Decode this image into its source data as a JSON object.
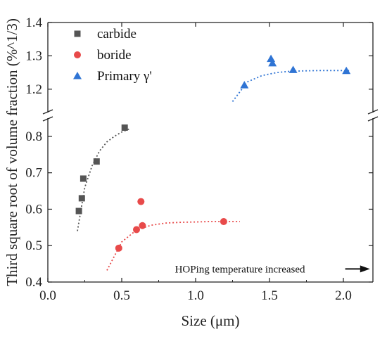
{
  "chart_data": {
    "type": "scatter",
    "xlabel": "Size (μm)",
    "ylabel": "Third square root of volume fraction (%^1/3)",
    "xlim": [
      0.0,
      2.2
    ],
    "x_ticks": [
      "0.0",
      "0.5",
      "1.0",
      "1.5",
      "2.0"
    ],
    "y_axis_broken": true,
    "lower_panel": {
      "ylim": [
        0.4,
        0.85
      ],
      "y_ticks": [
        "0.4",
        "0.5",
        "0.6",
        "0.7",
        "0.8"
      ]
    },
    "upper_panel": {
      "ylim": [
        1.13,
        1.4
      ],
      "y_ticks": [
        "1.2",
        "1.3",
        "1.4"
      ]
    },
    "grid": false,
    "legend_position": "top-left",
    "series": [
      {
        "name": "carbide",
        "marker": "square",
        "color": "#555555",
        "panel": "lower",
        "x": [
          0.21,
          0.23,
          0.24,
          0.33,
          0.52
        ],
        "y": [
          0.595,
          0.63,
          0.684,
          0.731,
          0.824
        ],
        "fit": {
          "x": [
            0.2,
            0.25,
            0.3,
            0.35,
            0.4,
            0.45,
            0.5,
            0.55
          ],
          "y": [
            0.54,
            0.66,
            0.72,
            0.76,
            0.785,
            0.8,
            0.812,
            0.82
          ],
          "color": "#555555"
        }
      },
      {
        "name": "boride",
        "marker": "circle",
        "color": "#e84a4a",
        "panel": "lower",
        "x": [
          0.48,
          0.6,
          0.63,
          0.64,
          1.19
        ],
        "y": [
          0.493,
          0.544,
          0.621,
          0.555,
          0.566
        ],
        "fit": {
          "x": [
            0.4,
            0.5,
            0.6,
            0.7,
            0.8,
            0.9,
            1.0,
            1.1,
            1.2,
            1.3
          ],
          "y": [
            0.432,
            0.51,
            0.543,
            0.556,
            0.562,
            0.564,
            0.565,
            0.566,
            0.566,
            0.566
          ],
          "color": "#e84a4a"
        }
      },
      {
        "name": "Primary γ'",
        "marker": "triangle",
        "color": "#2f74d4",
        "panel": "upper",
        "x": [
          1.33,
          1.51,
          1.52,
          1.66,
          2.02
        ],
        "y": [
          1.212,
          1.291,
          1.278,
          1.258,
          1.255
        ],
        "fit": {
          "x": [
            1.25,
            1.35,
            1.45,
            1.55,
            1.65,
            1.75,
            1.85,
            1.95,
            2.05
          ],
          "y": [
            1.163,
            1.222,
            1.241,
            1.25,
            1.254,
            1.255,
            1.256,
            1.256,
            1.256
          ],
          "color": "#2f74d4"
        }
      }
    ],
    "annotations": [
      {
        "text": "HOPing temperature increased",
        "x": 0.86,
        "y": 0.436,
        "arrow_to_x": 2.18
      }
    ]
  }
}
